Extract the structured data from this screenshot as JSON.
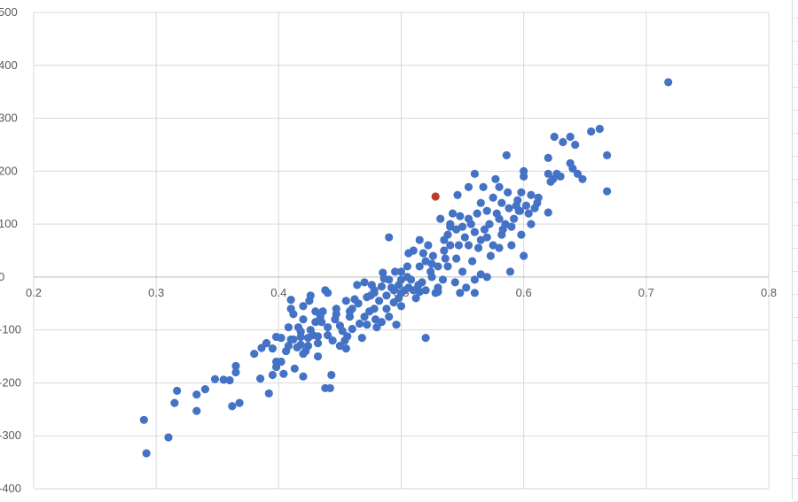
{
  "chart_data": {
    "type": "scatter",
    "title": "",
    "xlabel": "",
    "ylabel": "",
    "xlim": [
      0.2,
      0.8
    ],
    "ylim": [
      -400,
      500
    ],
    "x_ticks": [
      0.2,
      0.3,
      0.4,
      0.5,
      0.6,
      0.7,
      0.8
    ],
    "y_ticks": [
      -400,
      -300,
      -200,
      -100,
      0,
      100,
      200,
      300,
      400,
      500
    ],
    "x_tick_labels": [
      "0.2",
      "0.3",
      "0.4",
      "0.5",
      "0.6",
      "0.7",
      "0.8"
    ],
    "y_tick_labels": [
      "-400",
      "-300",
      "-200",
      "-100",
      "0",
      "100",
      "200",
      "300",
      "400",
      "500"
    ],
    "grid": true,
    "colors": {
      "series": "#4472c4",
      "highlight": "#c0392b",
      "grid": "#d9d9d9",
      "text": "#595959"
    },
    "series": [
      {
        "color": "#4472c4",
        "points": [
          [
            0.29,
            -270
          ],
          [
            0.292,
            -333
          ],
          [
            0.31,
            -303
          ],
          [
            0.315,
            -238
          ],
          [
            0.317,
            -215
          ],
          [
            0.333,
            -222
          ],
          [
            0.333,
            -253
          ],
          [
            0.34,
            -212
          ],
          [
            0.348,
            -193
          ],
          [
            0.355,
            -194
          ],
          [
            0.36,
            -195
          ],
          [
            0.362,
            -244
          ],
          [
            0.365,
            -168
          ],
          [
            0.365,
            -180
          ],
          [
            0.368,
            -238
          ],
          [
            0.38,
            -145
          ],
          [
            0.385,
            -192
          ],
          [
            0.386,
            -134
          ],
          [
            0.39,
            -125
          ],
          [
            0.392,
            -220
          ],
          [
            0.395,
            -185
          ],
          [
            0.395,
            -135
          ],
          [
            0.398,
            -170
          ],
          [
            0.398,
            -160
          ],
          [
            0.398,
            -113
          ],
          [
            0.402,
            -160
          ],
          [
            0.404,
            -183
          ],
          [
            0.406,
            -140
          ],
          [
            0.408,
            -95
          ],
          [
            0.408,
            -130
          ],
          [
            0.41,
            -118
          ],
          [
            0.41,
            -60
          ],
          [
            0.41,
            -43
          ],
          [
            0.412,
            -70
          ],
          [
            0.413,
            -173
          ],
          [
            0.415,
            -133
          ],
          [
            0.418,
            -103
          ],
          [
            0.418,
            -113
          ],
          [
            0.418,
            -128
          ],
          [
            0.42,
            -188
          ],
          [
            0.42,
            -145
          ],
          [
            0.42,
            -80
          ],
          [
            0.42,
            -55
          ],
          [
            0.424,
            -130
          ],
          [
            0.424,
            -115
          ],
          [
            0.425,
            -45
          ],
          [
            0.426,
            -35
          ],
          [
            0.428,
            -110
          ],
          [
            0.43,
            -85
          ],
          [
            0.432,
            -112
          ],
          [
            0.432,
            -150
          ],
          [
            0.432,
            -125
          ],
          [
            0.434,
            -75
          ],
          [
            0.436,
            -65
          ],
          [
            0.438,
            -210
          ],
          [
            0.438,
            -25
          ],
          [
            0.44,
            -95
          ],
          [
            0.44,
            -110
          ],
          [
            0.442,
            -210
          ],
          [
            0.443,
            -185
          ],
          [
            0.444,
            -120
          ],
          [
            0.446,
            -80
          ],
          [
            0.447,
            -70
          ],
          [
            0.45,
            -130
          ],
          [
            0.45,
            -92
          ],
          [
            0.452,
            -102
          ],
          [
            0.454,
            -120
          ],
          [
            0.455,
            -135
          ],
          [
            0.456,
            -112
          ],
          [
            0.458,
            -75
          ],
          [
            0.458,
            -65
          ],
          [
            0.46,
            -98
          ],
          [
            0.46,
            -60
          ],
          [
            0.462,
            -42
          ],
          [
            0.464,
            -15
          ],
          [
            0.466,
            -88
          ],
          [
            0.468,
            -115
          ],
          [
            0.47,
            -75
          ],
          [
            0.47,
            -10
          ],
          [
            0.472,
            -90
          ],
          [
            0.474,
            -65
          ],
          [
            0.475,
            -35
          ],
          [
            0.476,
            -15
          ],
          [
            0.478,
            -25
          ],
          [
            0.478,
            -60
          ],
          [
            0.479,
            -80
          ],
          [
            0.48,
            -95
          ],
          [
            0.482,
            -45
          ],
          [
            0.484,
            -18
          ],
          [
            0.484,
            -85
          ],
          [
            0.486,
            -3
          ],
          [
            0.488,
            -60
          ],
          [
            0.488,
            -35
          ],
          [
            0.49,
            -75
          ],
          [
            0.49,
            -5
          ],
          [
            0.492,
            -20
          ],
          [
            0.494,
            -48
          ],
          [
            0.494,
            -25
          ],
          [
            0.496,
            -90
          ],
          [
            0.498,
            -40
          ],
          [
            0.498,
            -15
          ],
          [
            0.5,
            -30
          ],
          [
            0.5,
            10
          ],
          [
            0.5,
            -55
          ],
          [
            0.503,
            -25
          ],
          [
            0.505,
            0
          ],
          [
            0.506,
            -20
          ],
          [
            0.508,
            -5
          ],
          [
            0.51,
            -25
          ],
          [
            0.51,
            50
          ],
          [
            0.512,
            -40
          ],
          [
            0.514,
            -15
          ],
          [
            0.515,
            20
          ],
          [
            0.517,
            -10
          ],
          [
            0.518,
            45
          ],
          [
            0.52,
            -25
          ],
          [
            0.52,
            30
          ],
          [
            0.522,
            60
          ],
          [
            0.524,
            10
          ],
          [
            0.525,
            0
          ],
          [
            0.526,
            40
          ],
          [
            0.528,
            -30
          ],
          [
            0.53,
            20
          ],
          [
            0.53,
            -20
          ],
          [
            0.532,
            110
          ],
          [
            0.534,
            -5
          ],
          [
            0.535,
            50
          ],
          [
            0.536,
            35
          ],
          [
            0.538,
            80
          ],
          [
            0.538,
            20
          ],
          [
            0.54,
            60
          ],
          [
            0.54,
            100
          ],
          [
            0.542,
            120
          ],
          [
            0.544,
            -10
          ],
          [
            0.545,
            35
          ],
          [
            0.546,
            155
          ],
          [
            0.548,
            -30
          ],
          [
            0.55,
            95
          ],
          [
            0.55,
            10
          ],
          [
            0.552,
            75
          ],
          [
            0.553,
            -20
          ],
          [
            0.555,
            60
          ],
          [
            0.555,
            110
          ],
          [
            0.557,
            100
          ],
          [
            0.558,
            30
          ],
          [
            0.56,
            85
          ],
          [
            0.56,
            -5
          ],
          [
            0.562,
            120
          ],
          [
            0.563,
            55
          ],
          [
            0.565,
            140
          ],
          [
            0.565,
            5
          ],
          [
            0.567,
            170
          ],
          [
            0.568,
            90
          ],
          [
            0.57,
            75
          ],
          [
            0.57,
            125
          ],
          [
            0.572,
            100
          ],
          [
            0.573,
            40
          ],
          [
            0.575,
            150
          ],
          [
            0.575,
            60
          ],
          [
            0.577,
            185
          ],
          [
            0.578,
            120
          ],
          [
            0.58,
            110
          ],
          [
            0.58,
            170
          ],
          [
            0.582,
            80
          ],
          [
            0.582,
            140
          ],
          [
            0.585,
            100
          ],
          [
            0.586,
            230
          ],
          [
            0.587,
            160
          ],
          [
            0.588,
            130
          ],
          [
            0.589,
            10
          ],
          [
            0.59,
            60
          ],
          [
            0.59,
            95
          ],
          [
            0.592,
            110
          ],
          [
            0.594,
            135
          ],
          [
            0.595,
            145
          ],
          [
            0.596,
            125
          ],
          [
            0.598,
            80
          ],
          [
            0.598,
            160
          ],
          [
            0.6,
            200
          ],
          [
            0.6,
            190
          ],
          [
            0.602,
            135
          ],
          [
            0.604,
            120
          ],
          [
            0.606,
            155
          ],
          [
            0.606,
            100
          ],
          [
            0.609,
            130
          ],
          [
            0.611,
            140
          ],
          [
            0.612,
            150
          ],
          [
            0.62,
            195
          ],
          [
            0.62,
            225
          ],
          [
            0.622,
            180
          ],
          [
            0.624,
            185
          ],
          [
            0.625,
            265
          ],
          [
            0.627,
            195
          ],
          [
            0.63,
            190
          ],
          [
            0.632,
            255
          ],
          [
            0.638,
            265
          ],
          [
            0.64,
            205
          ],
          [
            0.642,
            250
          ],
          [
            0.644,
            195
          ],
          [
            0.648,
            185
          ],
          [
            0.655,
            275
          ],
          [
            0.662,
            280
          ],
          [
            0.668,
            230
          ],
          [
            0.668,
            162
          ],
          [
            0.718,
            368
          ],
          [
            0.62,
            122
          ],
          [
            0.638,
            215
          ],
          [
            0.58,
            55
          ],
          [
            0.597,
            125
          ],
          [
            0.6,
            40
          ],
          [
            0.57,
            0
          ],
          [
            0.56,
            195
          ],
          [
            0.555,
            170
          ],
          [
            0.545,
            90
          ],
          [
            0.52,
            -115
          ],
          [
            0.525,
            25
          ],
          [
            0.535,
            70
          ],
          [
            0.548,
            115
          ],
          [
            0.515,
            70
          ],
          [
            0.506,
            45
          ],
          [
            0.5,
            -5
          ],
          [
            0.495,
            10
          ],
          [
            0.485,
            8
          ],
          [
            0.478,
            -30
          ],
          [
            0.472,
            -38
          ],
          [
            0.465,
            -50
          ],
          [
            0.455,
            -45
          ],
          [
            0.447,
            -60
          ],
          [
            0.44,
            -30
          ],
          [
            0.435,
            -85
          ],
          [
            0.43,
            -65
          ],
          [
            0.426,
            -100
          ],
          [
            0.422,
            -140
          ],
          [
            0.416,
            -95
          ],
          [
            0.412,
            -118
          ],
          [
            0.402,
            -115
          ],
          [
            0.39,
            -125
          ],
          [
            0.49,
            75
          ],
          [
            0.505,
            20
          ],
          [
            0.515,
            -28
          ],
          [
            0.53,
            -28
          ],
          [
            0.54,
            95
          ],
          [
            0.547,
            60
          ],
          [
            0.56,
            -30
          ],
          [
            0.565,
            70
          ],
          [
            0.583,
            90
          ]
        ]
      },
      {
        "color": "#c0392b",
        "points": [
          [
            0.528,
            152
          ]
        ]
      }
    ]
  }
}
